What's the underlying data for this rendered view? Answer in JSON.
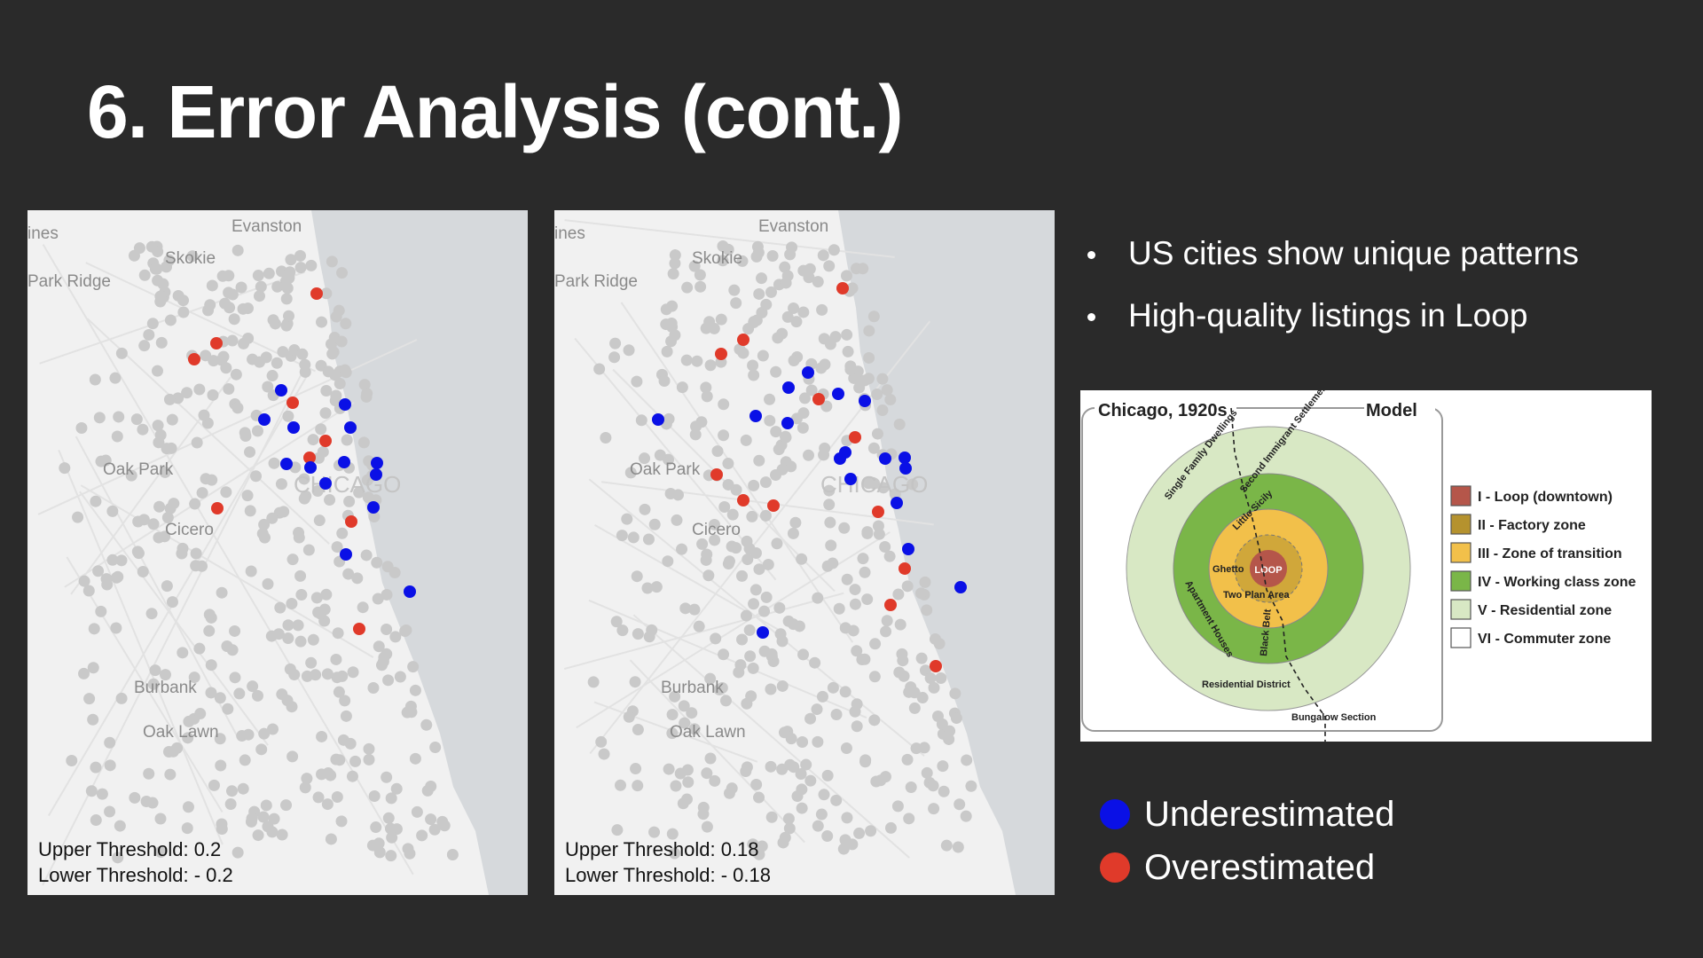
{
  "slide": {
    "title": "6. Error Analysis (cont.)"
  },
  "maps": [
    {
      "place_labels": [
        "ines",
        "Evanston",
        "Skokie",
        "Park Ridge",
        "Oak Park",
        "CHICAGO",
        "Cicero",
        "Burbank",
        "Oak Lawn"
      ],
      "threshold_upper": "Upper Threshold: 0.2",
      "threshold_lower": "Lower Threshold: - 0.2"
    },
    {
      "place_labels": [
        "ines",
        "Evanston",
        "Skokie",
        "Park Ridge",
        "Oak Park",
        "CHICAGO",
        "Cicero",
        "Burbank",
        "Oak Lawn"
      ],
      "threshold_upper": "Upper Threshold: 0.18",
      "threshold_lower": "Lower Threshold: - 0.18"
    }
  ],
  "bullets": [
    "US cities show unique patterns",
    "High-quality listings in Loop"
  ],
  "model_diagram": {
    "left_label": "Chicago, 1920s",
    "right_label": "Model",
    "zones": [
      {
        "label": "I - Loop (downtown)",
        "color": "#b5564a"
      },
      {
        "label": "II - Factory zone",
        "color": "#b5922e"
      },
      {
        "label": "III - Zone of transition",
        "color": "#f2c04a"
      },
      {
        "label": "IV - Working class zone",
        "color": "#7ab648"
      },
      {
        "label": "V - Residential zone",
        "color": "#d8e8c4"
      },
      {
        "label": "VI - Commuter zone",
        "color": "#ffffff"
      }
    ],
    "ring_labels": {
      "loop": "LOOP",
      "single_family": "Single Family Dwellings",
      "second_immigrant": "Second Immigrant Settlement",
      "little_sicily": "Little Sicily",
      "ghetto": "Ghetto",
      "two_plan": "Two Plan Area",
      "apartment": "Apartment Houses",
      "black_belt": "Black Belt",
      "residential": "Residential District",
      "bungalow": "Bungalow Section"
    }
  },
  "legend": [
    {
      "label": "Underestimated",
      "color": "#0a10e6"
    },
    {
      "label": "Overestimated",
      "color": "#e03a2a"
    }
  ],
  "colors": {
    "background": "#2a2a2a",
    "map_land": "#f1f1f1",
    "map_water": "#d6d9dc",
    "listing_gray": "#c9c9c9"
  }
}
